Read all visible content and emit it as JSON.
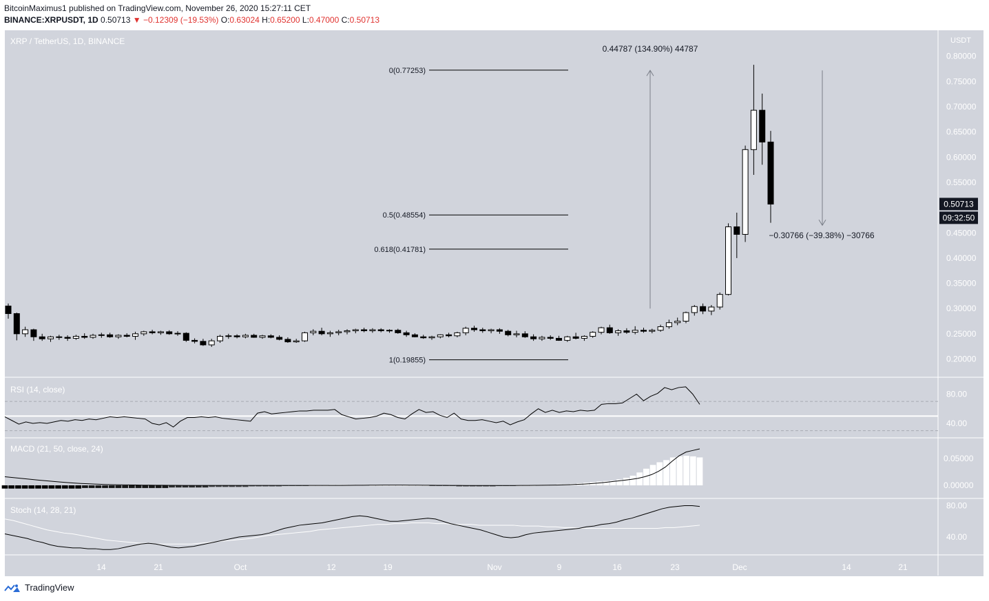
{
  "header": {
    "published": "BitcoinMaximus1 published on TradingView.com, November 26, 2020 15:27:11 CET",
    "symbol": "BINANCE:XRPUSDT, 1D",
    "last": "0.50713",
    "change": "▼ −0.12309 (−19.53%)",
    "o_label": "O:",
    "o": "0.63024",
    "h_label": "H:",
    "h": "0.65200",
    "l_label": "L:",
    "l": "0.47000",
    "c_label": "C:",
    "c": "0.50713"
  },
  "footer": {
    "brand": "TradingView"
  },
  "chart_data": [
    {
      "type": "candlestick",
      "title": "XRP / TetherUS, 1D, BINANCE",
      "currency": "USDT",
      "ylim": [
        0.17,
        0.84
      ],
      "y_ticks": [
        "0.80000",
        "0.75000",
        "0.70000",
        "0.65000",
        "0.60000",
        "0.55000",
        "0.50000",
        "0.45000",
        "0.40000",
        "0.35000",
        "0.30000",
        "0.25000",
        "0.20000"
      ],
      "price_label": "0.50713",
      "countdown": "09:32:50",
      "x_ticks": [
        "14",
        "21",
        "Oct",
        "12",
        "19",
        "Nov",
        "9",
        "16",
        "23",
        "Dec",
        "14",
        "21"
      ],
      "fib_levels": [
        {
          "label": "0(0.77253)",
          "value": 0.77253
        },
        {
          "label": "0.5(0.48554)",
          "value": 0.48554
        },
        {
          "label": "0.618(0.41781)",
          "value": 0.41781
        },
        {
          "label": "1(0.19855)",
          "value": 0.19855
        }
      ],
      "measure_up": "0.44787 (134.90%) 44787",
      "measure_down": "−0.30766 (−39.38%) −30766",
      "candles": [
        [
          0.305,
          0.31,
          0.28,
          0.29
        ],
        [
          0.29,
          0.292,
          0.237,
          0.25
        ],
        [
          0.25,
          0.264,
          0.244,
          0.258
        ],
        [
          0.258,
          0.26,
          0.236,
          0.244
        ],
        [
          0.244,
          0.25,
          0.236,
          0.24
        ],
        [
          0.24,
          0.246,
          0.234,
          0.244
        ],
        [
          0.244,
          0.248,
          0.238,
          0.243
        ],
        [
          0.243,
          0.247,
          0.236,
          0.241
        ],
        [
          0.241,
          0.248,
          0.238,
          0.245
        ],
        [
          0.245,
          0.251,
          0.24,
          0.243
        ],
        [
          0.243,
          0.25,
          0.24,
          0.247
        ],
        [
          0.247,
          0.252,
          0.242,
          0.248
        ],
        [
          0.248,
          0.252,
          0.242,
          0.244
        ],
        [
          0.244,
          0.249,
          0.24,
          0.247
        ],
        [
          0.247,
          0.251,
          0.243,
          0.245
        ],
        [
          0.245,
          0.254,
          0.238,
          0.25
        ],
        [
          0.25,
          0.256,
          0.246,
          0.254
        ],
        [
          0.254,
          0.258,
          0.249,
          0.252
        ],
        [
          0.252,
          0.256,
          0.248,
          0.254
        ],
        [
          0.254,
          0.257,
          0.248,
          0.25
        ],
        [
          0.25,
          0.255,
          0.246,
          0.251
        ],
        [
          0.251,
          0.253,
          0.234,
          0.237
        ],
        [
          0.237,
          0.241,
          0.231,
          0.235
        ],
        [
          0.235,
          0.24,
          0.226,
          0.228
        ],
        [
          0.228,
          0.24,
          0.224,
          0.236
        ],
        [
          0.236,
          0.248,
          0.232,
          0.245
        ],
        [
          0.245,
          0.25,
          0.24,
          0.246
        ],
        [
          0.246,
          0.249,
          0.241,
          0.244
        ],
        [
          0.244,
          0.25,
          0.241,
          0.247
        ],
        [
          0.247,
          0.25,
          0.242,
          0.243
        ],
        [
          0.243,
          0.248,
          0.24,
          0.246
        ],
        [
          0.246,
          0.249,
          0.241,
          0.243
        ],
        [
          0.243,
          0.247,
          0.237,
          0.239
        ],
        [
          0.239,
          0.243,
          0.232,
          0.234
        ],
        [
          0.234,
          0.24,
          0.232,
          0.236
        ],
        [
          0.236,
          0.254,
          0.234,
          0.252
        ],
        [
          0.252,
          0.259,
          0.247,
          0.255
        ],
        [
          0.255,
          0.262,
          0.247,
          0.25
        ],
        [
          0.25,
          0.256,
          0.244,
          0.252
        ],
        [
          0.252,
          0.258,
          0.247,
          0.254
        ],
        [
          0.254,
          0.259,
          0.249,
          0.256
        ],
        [
          0.256,
          0.26,
          0.251,
          0.258
        ],
        [
          0.258,
          0.262,
          0.253,
          0.256
        ],
        [
          0.256,
          0.261,
          0.252,
          0.258
        ],
        [
          0.258,
          0.261,
          0.253,
          0.256
        ],
        [
          0.256,
          0.259,
          0.252,
          0.257
        ],
        [
          0.257,
          0.26,
          0.25,
          0.252
        ],
        [
          0.252,
          0.256,
          0.244,
          0.248
        ],
        [
          0.248,
          0.251,
          0.243,
          0.244
        ],
        [
          0.244,
          0.248,
          0.24,
          0.242
        ],
        [
          0.242,
          0.246,
          0.238,
          0.244
        ],
        [
          0.244,
          0.249,
          0.241,
          0.248
        ],
        [
          0.248,
          0.252,
          0.243,
          0.246
        ],
        [
          0.246,
          0.254,
          0.243,
          0.252
        ],
        [
          0.252,
          0.264,
          0.247,
          0.261
        ],
        [
          0.261,
          0.266,
          0.254,
          0.258
        ],
        [
          0.258,
          0.262,
          0.252,
          0.256
        ],
        [
          0.256,
          0.26,
          0.251,
          0.258
        ],
        [
          0.258,
          0.261,
          0.25,
          0.255
        ],
        [
          0.255,
          0.258,
          0.245,
          0.248
        ],
        [
          0.248,
          0.256,
          0.243,
          0.25
        ],
        [
          0.25,
          0.255,
          0.242,
          0.244
        ],
        [
          0.244,
          0.249,
          0.236,
          0.24
        ],
        [
          0.24,
          0.246,
          0.236,
          0.243
        ],
        [
          0.243,
          0.247,
          0.238,
          0.241
        ],
        [
          0.241,
          0.246,
          0.236,
          0.237
        ],
        [
          0.237,
          0.246,
          0.234,
          0.244
        ],
        [
          0.244,
          0.252,
          0.239,
          0.241
        ],
        [
          0.241,
          0.247,
          0.236,
          0.245
        ],
        [
          0.245,
          0.255,
          0.242,
          0.253
        ],
        [
          0.253,
          0.264,
          0.249,
          0.262
        ],
        [
          0.262,
          0.268,
          0.25,
          0.252
        ],
        [
          0.252,
          0.259,
          0.246,
          0.256
        ],
        [
          0.256,
          0.261,
          0.25,
          0.253
        ],
        [
          0.253,
          0.265,
          0.249,
          0.257
        ],
        [
          0.257,
          0.262,
          0.252,
          0.255
        ],
        [
          0.255,
          0.26,
          0.251,
          0.257
        ],
        [
          0.257,
          0.268,
          0.254,
          0.264
        ],
        [
          0.264,
          0.278,
          0.26,
          0.272
        ],
        [
          0.272,
          0.282,
          0.267,
          0.275
        ],
        [
          0.275,
          0.294,
          0.271,
          0.292
        ],
        [
          0.292,
          0.307,
          0.286,
          0.304
        ],
        [
          0.304,
          0.31,
          0.289,
          0.295
        ],
        [
          0.295,
          0.307,
          0.287,
          0.303
        ],
        [
          0.303,
          0.332,
          0.298,
          0.328
        ],
        [
          0.328,
          0.469,
          0.326,
          0.462
        ],
        [
          0.462,
          0.49,
          0.4,
          0.447
        ],
        [
          0.447,
          0.623,
          0.432,
          0.615
        ],
        [
          0.615,
          0.783,
          0.565,
          0.693
        ],
        [
          0.693,
          0.726,
          0.585,
          0.63
        ],
        [
          0.63,
          0.652,
          0.47,
          0.507
        ]
      ]
    },
    {
      "type": "line",
      "title": "RSI (14, close)",
      "ylim": [
        25,
        100
      ],
      "y_ticks": [
        "80.00",
        "40.00"
      ],
      "levels": [
        70,
        50,
        30
      ],
      "values": [
        49,
        44,
        39,
        42,
        40,
        41,
        40,
        42,
        44,
        43,
        45,
        44,
        46,
        45,
        47,
        49,
        48,
        49,
        48,
        47,
        46,
        40,
        38,
        41,
        35,
        43,
        48,
        48,
        49,
        48,
        49,
        47,
        46,
        45,
        44,
        43,
        54,
        56,
        53,
        54,
        55,
        56,
        57,
        57,
        58,
        58,
        58,
        59,
        52,
        49,
        46,
        47,
        48,
        50,
        54,
        52,
        48,
        46,
        53,
        59,
        55,
        56,
        51,
        48,
        54,
        46,
        44,
        44,
        45,
        43,
        41,
        43,
        38,
        42,
        45,
        53,
        60,
        55,
        58,
        55,
        57,
        56,
        58,
        57,
        58,
        66,
        67,
        67,
        68,
        74,
        80,
        71,
        77,
        81,
        89,
        86,
        89,
        90,
        80,
        66
      ]
    },
    {
      "type": "bar+line",
      "title": "MACD (21, 50, close, 24)",
      "ylim": [
        -0.008,
        0.07
      ],
      "y_ticks": [
        "0.05000",
        "0.00000"
      ],
      "macd": [
        0.016,
        0.0148,
        0.0135,
        0.0122,
        0.0109,
        0.0096,
        0.0085,
        0.0074,
        0.0063,
        0.0053,
        0.0044,
        0.0036,
        0.003,
        0.0024,
        0.0019,
        0.0015,
        0.0012,
        0.001,
        0.0008,
        0.0006,
        0.0004,
        0.0003,
        0.0002,
        0.0001,
        0.0,
        0.0,
        -0.0001,
        -0.0001,
        -0.0002,
        -0.0002,
        -0.0002,
        -0.0002,
        -0.0002,
        -0.0002,
        -0.0002,
        -0.0002,
        -0.0002,
        -0.0002,
        -0.0002,
        -0.0002,
        -0.0002,
        -0.0002,
        -0.0002,
        -0.0002,
        -0.0002,
        -0.0002,
        -0.0002,
        -0.0002,
        -0.0002,
        -0.0001,
        0.0,
        0.0001,
        0.0002,
        0.0003,
        0.0004,
        0.0005,
        0.0005,
        0.0005,
        0.0005,
        0.0004,
        0.0003,
        0.0002,
        0.0001,
        0.0,
        0.0,
        -0.0001,
        -0.0002,
        -0.0003,
        -0.0003,
        -0.0004,
        -0.0004,
        -0.0004,
        -0.0004,
        -0.0004,
        -0.0003,
        -0.0002,
        -0.0001,
        0.0,
        0.0001,
        0.0003,
        0.0005,
        0.0008,
        0.0012,
        0.0017,
        0.0023,
        0.003,
        0.004,
        0.0052,
        0.0066,
        0.008,
        0.0095,
        0.011,
        0.013,
        0.016,
        0.02,
        0.026,
        0.034,
        0.045,
        0.055,
        0.062,
        0.065,
        0.068
      ],
      "hist": [
        -0.006,
        -0.006,
        -0.006,
        -0.006,
        -0.006,
        -0.006,
        -0.006,
        -0.006,
        -0.006,
        -0.006,
        -0.006,
        -0.006,
        -0.005,
        -0.005,
        -0.005,
        -0.005,
        -0.005,
        -0.005,
        -0.005,
        -0.005,
        -0.005,
        -0.005,
        -0.005,
        -0.005,
        -0.005,
        -0.004,
        -0.004,
        -0.004,
        -0.004,
        -0.004,
        -0.004,
        -0.003,
        -0.003,
        -0.003,
        -0.003,
        -0.003,
        -0.003,
        -0.002,
        -0.002,
        -0.002,
        -0.002,
        -0.002,
        -0.001,
        -0.001,
        -0.001,
        -0.001,
        0.0,
        0.0,
        0.0,
        0.001,
        0.001,
        0.001,
        0.001,
        0.001,
        0.001,
        0.0,
        0.0,
        0.0,
        0.0,
        0.0,
        0.0,
        0.0,
        0.0,
        0.0,
        -0.001,
        -0.001,
        -0.001,
        -0.001,
        -0.002,
        -0.002,
        -0.002,
        -0.002,
        -0.002,
        -0.002,
        -0.001,
        -0.001,
        -0.001,
        0.0,
        0.0,
        0.0,
        0.001,
        0.001,
        0.001,
        0.002,
        0.002,
        0.003,
        0.004,
        0.005,
        0.006,
        0.007,
        0.008,
        0.009,
        0.011,
        0.014,
        0.018,
        0.024,
        0.031,
        0.038,
        0.043,
        0.047,
        0.052,
        0.054,
        0.055,
        0.054,
        0.052
      ],
      "hist_color_pos": "#ffffff",
      "hist_color_neg": "#000000"
    },
    {
      "type": "line",
      "title": "Stoch (14, 28, 21)",
      "ylim": [
        20,
        86
      ],
      "y_ticks": [
        "80.00",
        "40.00"
      ],
      "k": [
        44,
        42,
        40,
        38,
        35,
        33,
        30,
        28,
        27,
        26,
        26,
        25,
        25,
        24,
        24,
        25,
        27,
        29,
        31,
        32,
        31,
        29,
        27,
        26,
        27,
        28,
        30,
        32,
        34,
        36,
        38,
        40,
        41,
        42,
        43,
        45,
        48,
        51,
        53,
        55,
        56,
        57,
        58,
        60,
        62,
        64,
        66,
        67,
        66,
        64,
        62,
        60,
        60,
        61,
        62,
        63,
        64,
        63,
        60,
        57,
        55,
        53,
        51,
        49,
        46,
        43,
        40,
        39,
        40,
        43,
        45,
        46,
        47,
        48,
        49,
        50,
        51,
        53,
        54,
        56,
        57,
        59,
        62,
        64,
        67,
        70,
        73,
        76,
        78,
        79,
        80,
        80,
        79
      ],
      "d": [
        63,
        61,
        58,
        55,
        52,
        49,
        47,
        45,
        44,
        42,
        40,
        38,
        36,
        35,
        34,
        33,
        32,
        32,
        31,
        31,
        31,
        31,
        31,
        32,
        33,
        34,
        35,
        36,
        37,
        38,
        40,
        42,
        43,
        44,
        45,
        46,
        47,
        49,
        50,
        51,
        52,
        53,
        54,
        55,
        56,
        56,
        57,
        57,
        58,
        58,
        58,
        57,
        57,
        56,
        56,
        56,
        55,
        55,
        55,
        55,
        55,
        54,
        54,
        54,
        53,
        53,
        52,
        52,
        51,
        51,
        51,
        51,
        51,
        51,
        51,
        51,
        51,
        51,
        52,
        52,
        53,
        54,
        55
      ]
    }
  ]
}
